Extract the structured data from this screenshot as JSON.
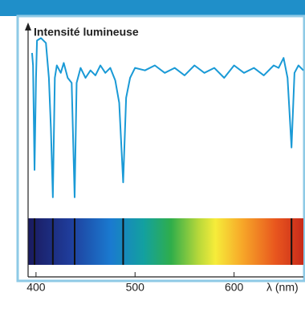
{
  "chart_data": {
    "type": "line",
    "y_label": "Intensité lumineuse",
    "x_label": "λ (nm)",
    "x": [
      396,
      397,
      398.5,
      400,
      401,
      405,
      410,
      413,
      415,
      417,
      419,
      421,
      425,
      428,
      432,
      436,
      439,
      441,
      445,
      450,
      455,
      460,
      465,
      470,
      475,
      480,
      484,
      488,
      491,
      495,
      500,
      510,
      520,
      530,
      540,
      550,
      560,
      570,
      580,
      590,
      600,
      610,
      620,
      630,
      640,
      645,
      650,
      654,
      658,
      661,
      665,
      670
    ],
    "series": [
      {
        "color": "#1a9ad6",
        "values": [
          90,
          85,
          43,
          80,
          95,
          96,
          94,
          80,
          60,
          32,
          80,
          85,
          82,
          86,
          80,
          78,
          32,
          78,
          84,
          80,
          83,
          81,
          85,
          82,
          84,
          79,
          70,
          38,
          72,
          80,
          84,
          83,
          85,
          82,
          84,
          81,
          85,
          82,
          84,
          80,
          85,
          82,
          84,
          81,
          85,
          84,
          88,
          80,
          52,
          82,
          85,
          83
        ]
      }
    ],
    "absorption_lines": [
      398.5,
      417,
      439,
      488,
      658
    ],
    "xlim": [
      392,
      670
    ],
    "xticks": [
      400,
      500,
      600
    ],
    "ylim": [
      0,
      100
    ]
  }
}
